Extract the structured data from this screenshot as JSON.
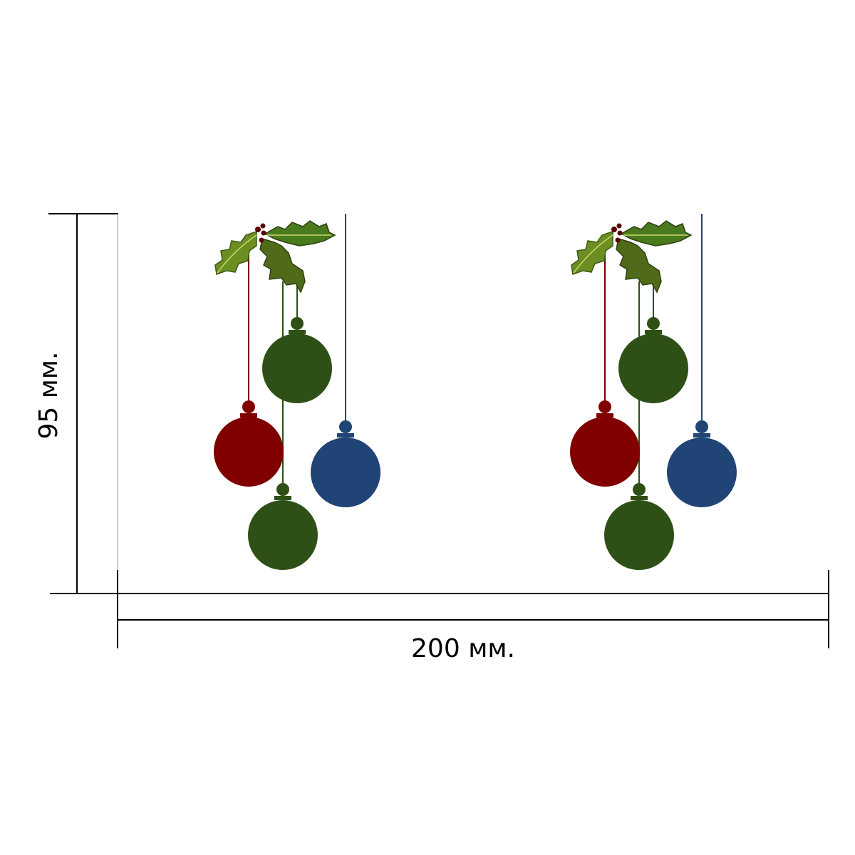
{
  "dimensions": {
    "height": {
      "label": "95 мм."
    },
    "width": {
      "label": "200 мм."
    }
  }
}
